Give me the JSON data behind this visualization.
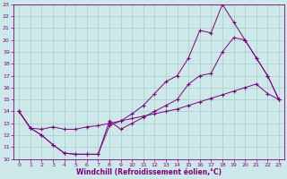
{
  "xlabel": "Windchill (Refroidissement éolien,°C)",
  "bg_color": "#cce8e8",
  "line_color": "#800080",
  "grid_color": "#aacccc",
  "xlim": [
    -0.5,
    23.5
  ],
  "ylim": [
    10,
    23
  ],
  "xticks": [
    0,
    1,
    2,
    3,
    4,
    5,
    6,
    7,
    8,
    9,
    10,
    11,
    12,
    13,
    14,
    15,
    16,
    17,
    18,
    19,
    20,
    21,
    22,
    23
  ],
  "yticks": [
    10,
    11,
    12,
    13,
    14,
    15,
    16,
    17,
    18,
    19,
    20,
    21,
    22,
    23
  ],
  "line1_x": [
    0,
    1,
    2,
    3,
    4,
    5,
    6,
    7,
    8,
    9,
    10,
    11,
    12,
    13,
    14,
    15,
    16,
    17,
    18,
    19,
    20,
    21,
    22,
    23
  ],
  "line1_y": [
    14.0,
    12.6,
    12.0,
    11.2,
    10.5,
    10.4,
    10.4,
    10.4,
    13.2,
    12.5,
    13.0,
    13.5,
    14.0,
    14.5,
    15.0,
    16.3,
    17.0,
    17.2,
    19.0,
    20.2,
    20.0,
    18.5,
    17.0,
    15.0
  ],
  "line2_x": [
    0,
    1,
    2,
    3,
    4,
    5,
    6,
    7,
    8,
    9,
    10,
    11,
    12,
    13,
    14,
    15,
    16,
    17,
    18,
    19,
    20,
    21,
    22,
    23
  ],
  "line2_y": [
    14.0,
    12.6,
    12.0,
    11.2,
    10.5,
    10.4,
    10.4,
    10.4,
    12.8,
    13.2,
    13.8,
    14.5,
    15.5,
    16.5,
    17.0,
    18.5,
    20.8,
    20.6,
    23.0,
    21.5,
    20.0,
    18.5,
    17.0,
    15.0
  ],
  "line3_x": [
    0,
    1,
    2,
    3,
    4,
    5,
    6,
    7,
    8,
    9,
    10,
    11,
    12,
    13,
    14,
    15,
    16,
    17,
    18,
    19,
    20,
    21,
    22,
    23
  ],
  "line3_y": [
    14.0,
    12.6,
    12.5,
    12.7,
    12.5,
    12.5,
    12.7,
    12.8,
    13.0,
    13.2,
    13.4,
    13.6,
    13.8,
    14.0,
    14.2,
    14.5,
    14.8,
    15.1,
    15.4,
    15.7,
    16.0,
    16.3,
    15.5,
    15.0
  ]
}
